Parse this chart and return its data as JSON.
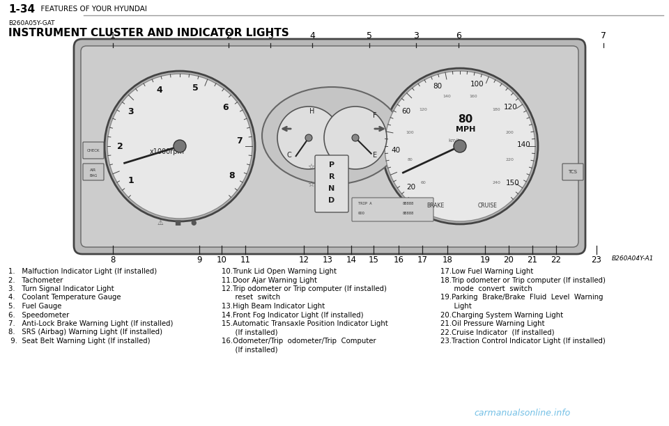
{
  "title_bold": "1-34",
  "title_regular": "  FEATURES OF YOUR HYUNDAI",
  "subtitle_code": "B260A05Y-GAT",
  "subtitle_main": "INSTRUMENT CLUSTER AND INDICATOR LIGHTS",
  "bg_color": "#ffffff",
  "ref_code": "B260A04Y-A1",
  "watermark": "carmanualsonline.info",
  "legend_col1": [
    "1.   Malfuction Indicator Light (If installed)",
    "2.   Tachometer",
    "3.   Turn Signal Indicator Light",
    "4.   Coolant Temperature Gauge",
    "5.   Fuel Gauge",
    "6.   Speedometer",
    "7.   Anti-Lock Brake Warning Light (If installed)",
    "8.   SRS (Airbag) Warning Light (If installed)",
    " 9.  Seat Belt Warning Light (If installed)"
  ],
  "legend_col2": [
    "10.Trunk Lid Open Warning Light",
    "11.Door Ajar Warning Light",
    "12.Trip odometer or Trip computer (If installed)",
    "      reset  switch",
    "13.High Beam Indicator Light",
    "14.Front Fog Indicator Light (If installed)",
    "15.Automatic Transaxle Position Indicator Light",
    "      (If installed)",
    "16.Odometer/Trip  odometer/Trip  Computer",
    "      (If installed)"
  ],
  "legend_col3": [
    "17.Low Fuel Warning Light",
    "18.Trip odometer or Trip computer (If installed)",
    "      mode  convert  switch",
    "19.Parking  Brake/Brake  Fluid  Level  Warning",
    "      Light",
    "20.Charging System Warning Light",
    "21.Oil Pressure Warning Light",
    "22.Cruise Indicator  (If installed)",
    "23.Traction Control Indicator Light (If installed)"
  ]
}
